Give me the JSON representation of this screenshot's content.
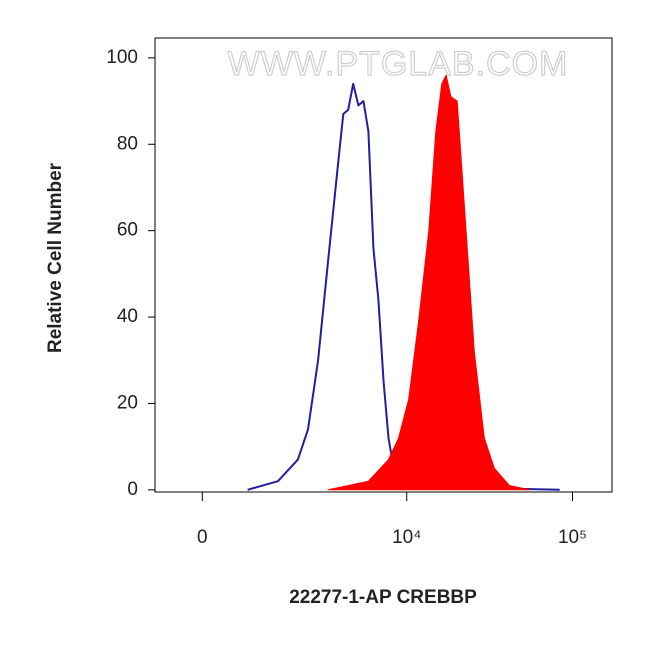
{
  "chart_data": {
    "type": "histogram-overlay",
    "x_label": "22277-1-AP CREBBP",
    "y_label": "Relative Cell Number",
    "annotation": "WWW.PTGLAB.COM",
    "xscale": {
      "type": "biexponential",
      "linear_width": 1178
    },
    "xlim": [
      -830,
      173000
    ],
    "xticks": [
      0,
      {
        "value": 10000,
        "label": "10⁴"
      },
      {
        "value": 100000,
        "label": "10⁵"
      }
    ],
    "ylim": [
      -0.5,
      104.6
    ],
    "yticks": [
      0,
      20,
      40,
      60,
      80,
      100
    ],
    "series": [
      {
        "color": "#1f1fa0",
        "fill": false,
        "x": [
          790,
          1475,
          2060,
          2415,
          2815,
          3270,
          3795,
          4080,
          4380,
          4700,
          5065,
          5440,
          5840,
          6265,
          6725,
          7230,
          7750,
          8330,
          8930,
          11800,
          18000,
          36300,
          83800
        ],
        "values": [
          0,
          2,
          7,
          14,
          30,
          53,
          76,
          87,
          88,
          94,
          89,
          90,
          83,
          56,
          44,
          25,
          12,
          5,
          2,
          1,
          1,
          0.3,
          0
        ]
      },
      {
        "color": "#ff0000",
        "fill": true,
        "x": [
          3270,
          4380,
          5840,
          7750,
          8930,
          10280,
          11800,
          13600,
          15000,
          16300,
          17300,
          18500,
          20200,
          22200,
          25600,
          29400,
          33800,
          41600,
          55100
        ],
        "values": [
          0,
          1,
          2,
          7,
          12,
          21,
          39,
          60,
          83,
          94,
          96,
          91,
          90,
          67,
          32,
          12,
          5,
          1,
          0
        ]
      }
    ]
  }
}
